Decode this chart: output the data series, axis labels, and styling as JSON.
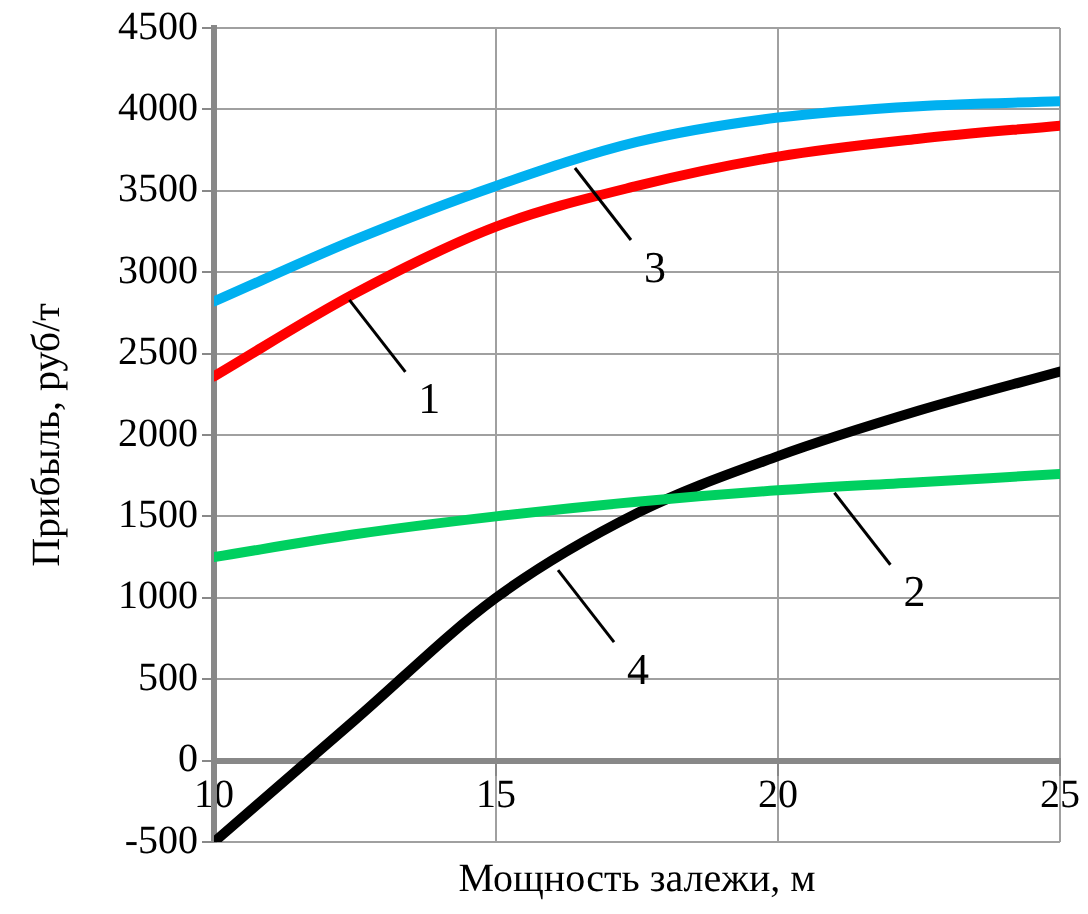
{
  "chart_data": {
    "type": "line",
    "xlabel": "Мощность залежи, м",
    "ylabel": "Прибыль, руб/т",
    "x": [
      10,
      12.5,
      15,
      17.5,
      20,
      22.5,
      25
    ],
    "series": [
      {
        "color": "#ff0000",
        "values": [
          2360,
          2870,
          3280,
          3530,
          3710,
          3820,
          3900
        ]
      },
      {
        "color": "#00d060",
        "values": [
          1250,
          1390,
          1500,
          1590,
          1660,
          1710,
          1760
        ]
      },
      {
        "color": "#00b0f0",
        "values": [
          2820,
          3200,
          3530,
          3800,
          3950,
          4020,
          4050
        ]
      },
      {
        "color": "#000000",
        "values": [
          -500,
          250,
          1000,
          1520,
          1870,
          2150,
          2390
        ]
      }
    ],
    "annotations": [
      {
        "text": "1",
        "x": 12.4,
        "y": 2830
      },
      {
        "text": "2",
        "x": 21,
        "y": 1645
      },
      {
        "text": "3",
        "x": 16.4,
        "y": 3640
      },
      {
        "text": "4",
        "x": 16.1,
        "y": 1170
      }
    ],
    "xlim": [
      10,
      25
    ],
    "xticks": [
      10,
      15,
      20,
      25
    ],
    "ylim": [
      -500,
      4500
    ],
    "yticks": [
      -500,
      0,
      500,
      1000,
      1500,
      2000,
      2500,
      3000,
      3500,
      4000,
      4500
    ],
    "grid": true,
    "legend": false,
    "marker": "none",
    "line_style": "solid"
  }
}
